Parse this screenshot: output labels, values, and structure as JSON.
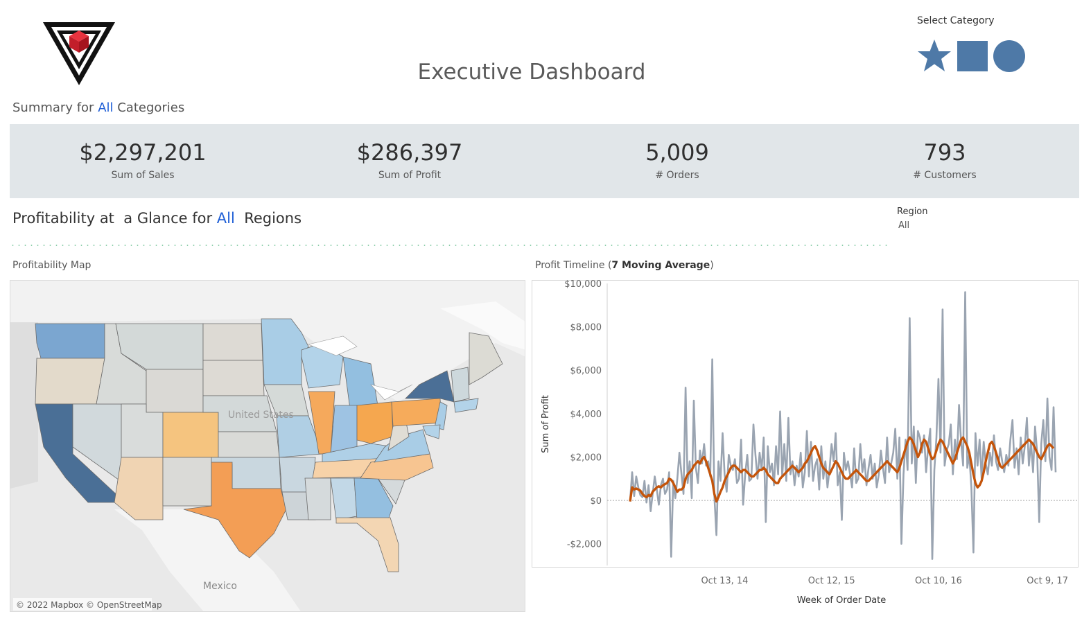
{
  "header": {
    "title": "Executive Dashboard",
    "select_category_label": "Select Category",
    "category_shapes": [
      {
        "name": "star",
        "color": "#4e79a7"
      },
      {
        "name": "square",
        "color": "#4e79a7"
      },
      {
        "name": "circle",
        "color": "#4e79a7"
      }
    ]
  },
  "summary": {
    "prefix": "Summary for ",
    "highlight": "All",
    "suffix": " Categories"
  },
  "kpis": [
    {
      "value": "$2,297,201",
      "label": "Sum of Sales"
    },
    {
      "value": "$286,397",
      "label": "Sum of Profit"
    },
    {
      "value": "5,009",
      "label": "# Orders"
    },
    {
      "value": "793",
      "label": "# Customers"
    }
  ],
  "section": {
    "prefix": "Profitability at  a Glance for ",
    "highlight": "All",
    "suffix": "  Regions"
  },
  "region_filter": {
    "label": "Region",
    "value": "All"
  },
  "map": {
    "title": "Profitability Map",
    "labels": {
      "country": "United States",
      "mexico": "Mexico"
    },
    "attribution": "© 2022 Mapbox © OpenStreetMap"
  },
  "timeline": {
    "title_prefix": "Profit Timeline (",
    "title_bold": "7 Moving Average",
    "title_suffix": ")"
  },
  "colors": {
    "accent": "#1f5fd6",
    "raw_line": "#9aa4b1",
    "avg_line": "#c4540a",
    "kpi_band": "#e1e6e9"
  },
  "chart_data": {
    "type": "line",
    "xlabel": "Week of Order Date",
    "ylabel": "Sum of Profit",
    "ylim": [
      -3000,
      10000
    ],
    "yticks": [
      -2000,
      0,
      2000,
      4000,
      6000,
      8000,
      10000
    ],
    "ytick_labels": [
      "-$2,000",
      "$0",
      "$2,000",
      "$4,000",
      "$6,000",
      "$8,000",
      "$10,000"
    ],
    "xticks": [
      "Oct 13, 14",
      "Oct 12, 15",
      "Oct 10, 16",
      "Oct 9, 17"
    ],
    "xtick_index": [
      46,
      98,
      150,
      203
    ],
    "series": [
      {
        "values": [
          -50,
          1300,
          200,
          1100,
          600,
          250,
          150,
          900,
          -100,
          700,
          -500,
          300,
          1100,
          500,
          -200,
          700,
          1000,
          300,
          500,
          1300,
          -2600,
          900,
          100,
          1000,
          2200,
          1200,
          300,
          5200,
          800,
          1800,
          100,
          4600,
          1500,
          800,
          2300,
          1700,
          2600,
          1600,
          1800,
          1100,
          6500,
          200,
          -1600,
          1800,
          900,
          3100,
          1200,
          400,
          2100,
          1600,
          1400,
          1900,
          800,
          1000,
          2800,
          -200,
          1200,
          2100,
          900,
          1000,
          3500,
          2100,
          1000,
          2200,
          1400,
          2900,
          -1000,
          2500,
          1300,
          1700,
          700,
          2500,
          1200,
          4100,
          1100,
          2600,
          900,
          3800,
          1200,
          1800,
          700,
          1600,
          1100,
          2200,
          600,
          1300,
          3200,
          1100,
          2700,
          900,
          1600,
          1900,
          500,
          2500,
          1000,
          1800,
          600,
          1400,
          2600,
          1800,
          3100,
          700,
          1300,
          -900,
          2200,
          1400,
          1800,
          1200,
          600,
          2400,
          800,
          1000,
          2600,
          1300,
          1900,
          700,
          1500,
          2100,
          1000,
          1700,
          600,
          1200,
          2300,
          1500,
          800,
          2900,
          1300,
          1700,
          2200,
          3300,
          1000,
          2900,
          -2000,
          1200,
          2800,
          1400,
          8400,
          1700,
          3400,
          800,
          3200,
          2900,
          2200,
          3000,
          1300,
          2500,
          3300,
          -2700,
          1400,
          2900,
          5600,
          2200,
          8800,
          1600,
          2300,
          2600,
          3500,
          1200,
          2800,
          1900,
          4400,
          2700,
          1600,
          9600,
          1500,
          2100,
          600,
          -2400,
          3100,
          1600,
          2800,
          1000,
          2700,
          1700,
          1200,
          2200,
          1600,
          3000,
          1800,
          1400,
          2400,
          1800,
          1300,
          2100,
          1600,
          2800,
          3700,
          1500,
          2400,
          1200,
          2900,
          1700,
          2500,
          3800,
          1600,
          2700,
          1300,
          3400,
          2200,
          -1000,
          2600,
          3700,
          1800,
          4700,
          2000,
          1400,
          4300,
          1300
        ]
      },
      {
        "values": [
          -50,
          600,
          500,
          550,
          500,
          450,
          300,
          200,
          150,
          250,
          200,
          400,
          500,
          600,
          650,
          600,
          700,
          750,
          800,
          1000,
          950,
          800,
          600,
          400,
          500,
          500,
          600,
          1000,
          1200,
          1300,
          1400,
          1600,
          1700,
          1800,
          1700,
          1900,
          2000,
          1800,
          1500,
          1200,
          900,
          300,
          -50,
          150,
          400,
          600,
          900,
          1100,
          1300,
          1500,
          1600,
          1600,
          1500,
          1400,
          1300,
          1400,
          1400,
          1300,
          1200,
          1100,
          1100,
          1200,
          1300,
          1400,
          1400,
          1500,
          1400,
          1200,
          1100,
          1000,
          900,
          800,
          800,
          1000,
          1100,
          1200,
          1300,
          1400,
          1500,
          1600,
          1500,
          1400,
          1300,
          1400,
          1500,
          1700,
          1800,
          2000,
          2200,
          2400,
          2500,
          2300,
          2000,
          1700,
          1500,
          1400,
          1300,
          1200,
          1400,
          1600,
          1800,
          1700,
          1500,
          1300,
          1100,
          1000,
          1000,
          1100,
          1200,
          1300,
          1400,
          1300,
          1200,
          1100,
          1000,
          900,
          900,
          1000,
          1100,
          1200,
          1300,
          1400,
          1500,
          1600,
          1700,
          1800,
          1700,
          1600,
          1500,
          1400,
          1300,
          1500,
          1800,
          2100,
          2400,
          2700,
          2900,
          2800,
          2600,
          2300,
          2000,
          2200,
          2600,
          2800,
          2700,
          2400,
          2100,
          1900,
          2000,
          2300,
          2600,
          2800,
          2700,
          2500,
          2300,
          2100,
          1900,
          1700,
          1900,
          2200,
          2500,
          2800,
          2900,
          2700,
          2500,
          2200,
          1700,
          1200,
          800,
          600,
          700,
          900,
          1300,
          1800,
          2200,
          2600,
          2700,
          2500,
          2200,
          1900,
          1600,
          1500,
          1600,
          1700,
          1800,
          1900,
          2000,
          2100,
          2200,
          2300,
          2400,
          2500,
          2600,
          2700,
          2800,
          2700,
          2600,
          2400,
          2200,
          2000,
          1900,
          2100,
          2300,
          2500,
          2600,
          2500,
          2400
        ]
      }
    ]
  }
}
